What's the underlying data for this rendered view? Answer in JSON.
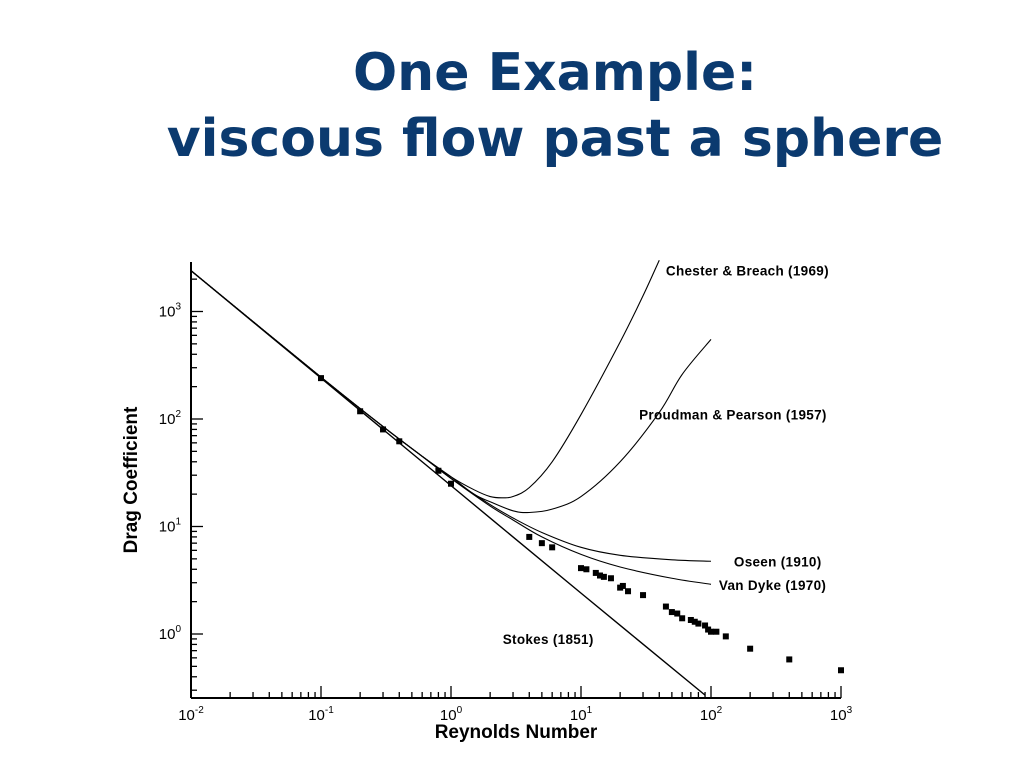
{
  "slide": {
    "title_line1": "One Example:",
    "title_line2": "viscous flow past a sphere",
    "title_color": "#0b3a6f"
  },
  "chart_data": {
    "type": "line",
    "title": "",
    "xlabel": "Reynolds Number",
    "ylabel": "Drag Coefficient",
    "xscale": "log",
    "yscale": "log",
    "xlim": [
      0.01,
      1000
    ],
    "ylim": [
      0.25,
      3000
    ],
    "grid": false,
    "x_ticks": [
      {
        "base": "10",
        "exp": "-2",
        "value": 0.01
      },
      {
        "base": "10",
        "exp": "-1",
        "value": 0.1
      },
      {
        "base": "10",
        "exp": "0",
        "value": 1
      },
      {
        "base": "10",
        "exp": "1",
        "value": 10
      },
      {
        "base": "10",
        "exp": "2",
        "value": 100
      },
      {
        "base": "10",
        "exp": "3",
        "value": 1000
      }
    ],
    "y_ticks": [
      {
        "base": "10",
        "exp": "0",
        "value": 1
      },
      {
        "base": "10",
        "exp": "1",
        "value": 10
      },
      {
        "base": "10",
        "exp": "2",
        "value": 100
      },
      {
        "base": "10",
        "exp": "3",
        "value": 1000
      }
    ],
    "series": [
      {
        "name": "Stokes (1851)",
        "kind": "line",
        "x": [
          0.01,
          0.1,
          1,
          10,
          90
        ],
        "y": [
          2400,
          240,
          24,
          2.4,
          0.27
        ]
      },
      {
        "name": "Chester & Breach (1969)",
        "kind": "line",
        "x": [
          0.01,
          0.1,
          0.3,
          0.6,
          1,
          1.5,
          2,
          2.5,
          3,
          4,
          6,
          10,
          20,
          30,
          40
        ],
        "y": [
          2400,
          245,
          85,
          45,
          29,
          22,
          19,
          18.5,
          19,
          23,
          40,
          110,
          520,
          1400,
          3000
        ]
      },
      {
        "name": "Proudman & Pearson  (1957)",
        "kind": "line",
        "x": [
          0.01,
          0.1,
          0.3,
          0.6,
          1,
          1.5,
          2,
          3,
          4,
          6,
          10,
          20,
          40,
          60,
          100
        ],
        "y": [
          2400,
          245,
          85,
          45,
          29,
          20,
          17,
          14,
          13.5,
          14.5,
          19,
          40,
          115,
          260,
          550
        ]
      },
      {
        "name": "Oseen (1910)",
        "kind": "line",
        "x": [
          0.01,
          0.1,
          0.3,
          0.6,
          1,
          2,
          3,
          5,
          10,
          20,
          50,
          100
        ],
        "y": [
          2400,
          245,
          85,
          45,
          28,
          16,
          12,
          8.8,
          6.4,
          5.4,
          4.9,
          4.75
        ]
      },
      {
        "name": "Van Dyke  (1970)",
        "kind": "line",
        "x": [
          0.01,
          0.1,
          0.3,
          0.6,
          1,
          2,
          3,
          5,
          10,
          20,
          50,
          100
        ],
        "y": [
          2400,
          245,
          85,
          45,
          28,
          15.5,
          11.5,
          8,
          5.5,
          4.2,
          3.3,
          2.9
        ]
      },
      {
        "name": "",
        "kind": "points",
        "x": [
          0.1,
          0.2,
          0.3,
          0.4,
          0.8,
          1,
          4,
          5,
          6,
          10,
          11,
          13,
          14,
          15,
          17,
          20,
          21,
          23,
          30,
          45,
          50,
          55,
          60,
          70,
          75,
          80,
          90,
          95,
          100,
          110,
          130,
          200,
          400,
          1000
        ],
        "y": [
          240,
          118,
          80,
          62,
          33,
          25,
          8,
          7,
          6.4,
          4.1,
          4.0,
          3.7,
          3.5,
          3.4,
          3.3,
          2.7,
          2.8,
          2.5,
          2.3,
          1.8,
          1.6,
          1.55,
          1.4,
          1.35,
          1.3,
          1.25,
          1.2,
          1.1,
          1.05,
          1.05,
          0.95,
          0.73,
          0.58,
          0.46
        ]
      }
    ],
    "annotations": [
      {
        "text": "Chester & Breach (1969)",
        "x": 45,
        "y": 2400
      },
      {
        "text": "Proudman & Pearson  (1957)",
        "x": 28,
        "y": 110
      },
      {
        "text": "Oseen (1910)",
        "x": 150,
        "y": 4.7
      },
      {
        "text": "Van Dyke  (1970)",
        "x": 115,
        "y": 2.85
      },
      {
        "text": "Stokes (1851)",
        "x": 2.5,
        "y": 0.9
      }
    ]
  }
}
